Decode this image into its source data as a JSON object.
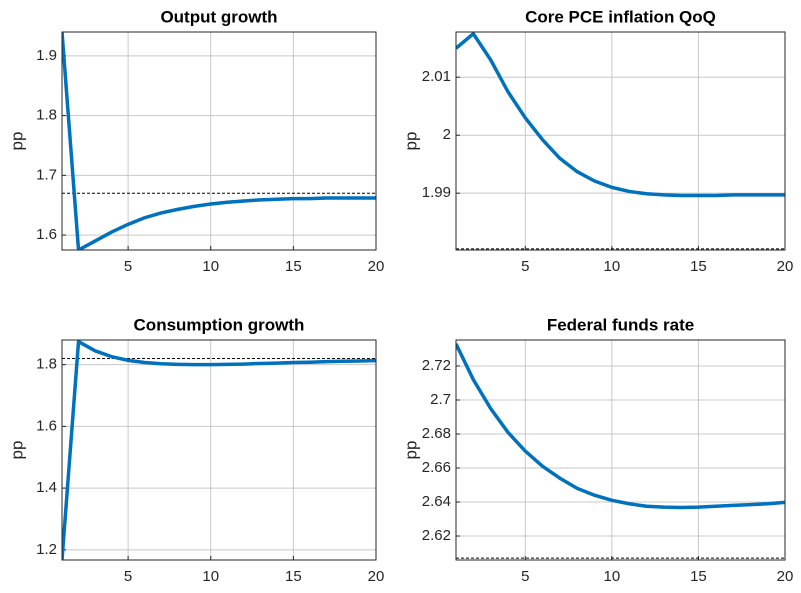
{
  "chart_data": [
    {
      "type": "line",
      "title": "Output growth",
      "y_label": "pp",
      "x": [
        1,
        2,
        3,
        4,
        5,
        6,
        7,
        8,
        9,
        10,
        11,
        12,
        13,
        14,
        15,
        16,
        17,
        18,
        19,
        20
      ],
      "series": [
        {
          "color": "#0072bd",
          "values": [
            1.94,
            1.575,
            1.59,
            1.605,
            1.618,
            1.629,
            1.637,
            1.643,
            1.648,
            1.652,
            1.655,
            1.657,
            1.659,
            1.66,
            1.661,
            1.661,
            1.662,
            1.662,
            1.662,
            1.662
          ]
        }
      ],
      "reference_line": 1.67,
      "xlim": [
        1,
        20
      ],
      "xticks": [
        5,
        10,
        15,
        20
      ],
      "ylim": [
        1.575,
        1.94
      ],
      "yticks": [
        1.6,
        1.7,
        1.8,
        1.9
      ],
      "grid": true
    },
    {
      "type": "line",
      "title": "Core PCE inflation QoQ",
      "y_label": "pp",
      "x": [
        1,
        2,
        3,
        4,
        5,
        6,
        7,
        8,
        9,
        10,
        11,
        12,
        13,
        14,
        15,
        16,
        17,
        18,
        19,
        20
      ],
      "series": [
        {
          "color": "#0072bd",
          "values": [
            2.015,
            2.0175,
            2.013,
            2.0075,
            2.003,
            1.9992,
            1.996,
            1.9937,
            1.9921,
            1.991,
            1.9903,
            1.9899,
            1.9897,
            1.9896,
            1.9896,
            1.9896,
            1.9897,
            1.9897,
            1.9897,
            1.9897
          ]
        }
      ],
      "reference_line": 1.9804,
      "xlim": [
        1,
        20
      ],
      "xticks": [
        5,
        10,
        15,
        20
      ],
      "ylim": [
        1.9802,
        2.0178
      ],
      "yticks": [
        1.99,
        2,
        2.01
      ],
      "grid": true
    },
    {
      "type": "line",
      "title": "Consumption growth",
      "y_label": "pp",
      "x": [
        1,
        2,
        3,
        4,
        5,
        6,
        7,
        8,
        9,
        10,
        11,
        12,
        13,
        14,
        15,
        16,
        17,
        18,
        19,
        20
      ],
      "series": [
        {
          "color": "#0072bd",
          "values": [
            1.167,
            1.875,
            1.845,
            1.826,
            1.814,
            1.807,
            1.803,
            1.801,
            1.8,
            1.8,
            1.801,
            1.802,
            1.804,
            1.805,
            1.807,
            1.808,
            1.81,
            1.811,
            1.812,
            1.813
          ]
        }
      ],
      "reference_line": 1.82,
      "xlim": [
        1,
        20
      ],
      "xticks": [
        5,
        10,
        15,
        20
      ],
      "ylim": [
        1.167,
        1.88
      ],
      "yticks": [
        1.2,
        1.4,
        1.6,
        1.8
      ],
      "grid": true
    },
    {
      "type": "line",
      "title": "Federal funds rate",
      "y_label": "pp",
      "x": [
        1,
        2,
        3,
        4,
        5,
        6,
        7,
        8,
        9,
        10,
        11,
        12,
        13,
        14,
        15,
        16,
        17,
        18,
        19,
        20
      ],
      "series": [
        {
          "color": "#0072bd",
          "values": [
            2.733,
            2.712,
            2.695,
            2.681,
            2.67,
            2.661,
            2.654,
            2.648,
            2.644,
            2.641,
            2.639,
            2.6375,
            2.637,
            2.6368,
            2.637,
            2.6375,
            2.638,
            2.6385,
            2.639,
            2.6398
          ]
        }
      ],
      "reference_line": 2.607,
      "xlim": [
        1,
        20
      ],
      "xticks": [
        5,
        10,
        15,
        20
      ],
      "ylim": [
        2.6059,
        2.7353
      ],
      "yticks": [
        2.62,
        2.64,
        2.66,
        2.68,
        2.7,
        2.72
      ],
      "grid": true
    }
  ]
}
